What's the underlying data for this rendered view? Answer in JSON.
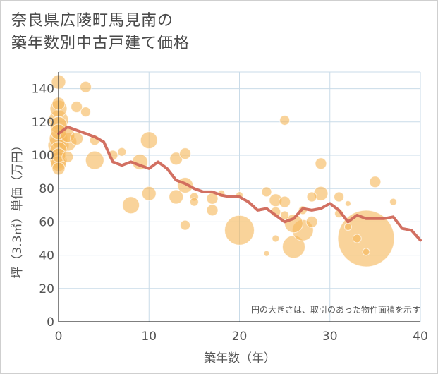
{
  "title_line1": "奈良県広陵町馬見南の",
  "title_line2": "築年数別中古戸建て価格",
  "note": "円の大きさは、取引のあった物件面積を示す",
  "chart_data": {
    "type": "scatter",
    "xlabel": "築年数（年）",
    "ylabel": "坪（3.3㎡）単価（万円）",
    "xlim": [
      0,
      40
    ],
    "ylim": [
      0,
      150
    ],
    "xticks": [
      0,
      10,
      20,
      30,
      40
    ],
    "yticks": [
      0,
      20,
      40,
      60,
      80,
      100,
      120,
      140
    ],
    "grid": true,
    "colors": {
      "bubble": "#f5b85c",
      "line": "#d0685a",
      "grid": "#c9dbe8"
    },
    "bubbles": [
      {
        "x": 0,
        "y": 144,
        "s": 10
      },
      {
        "x": 0,
        "y": 131,
        "s": 9
      },
      {
        "x": 0,
        "y": 128,
        "s": 12
      },
      {
        "x": 0,
        "y": 121,
        "s": 14
      },
      {
        "x": 0,
        "y": 118,
        "s": 12
      },
      {
        "x": 0,
        "y": 114,
        "s": 11
      },
      {
        "x": 0,
        "y": 110,
        "s": 13
      },
      {
        "x": 0,
        "y": 106,
        "s": 15
      },
      {
        "x": 0,
        "y": 103,
        "s": 12
      },
      {
        "x": 0,
        "y": 100,
        "s": 10
      },
      {
        "x": 0,
        "y": 97,
        "s": 12
      },
      {
        "x": 0,
        "y": 95,
        "s": 11
      },
      {
        "x": 0,
        "y": 92,
        "s": 9
      },
      {
        "x": 1,
        "y": 108,
        "s": 13
      },
      {
        "x": 1,
        "y": 112,
        "s": 10
      },
      {
        "x": 1,
        "y": 99,
        "s": 8
      },
      {
        "x": 2,
        "y": 129,
        "s": 8
      },
      {
        "x": 2,
        "y": 110,
        "s": 9
      },
      {
        "x": 3,
        "y": 141,
        "s": 8
      },
      {
        "x": 3,
        "y": 126,
        "s": 7
      },
      {
        "x": 4,
        "y": 97,
        "s": 13
      },
      {
        "x": 4,
        "y": 109,
        "s": 7
      },
      {
        "x": 6,
        "y": 100,
        "s": 7
      },
      {
        "x": 7,
        "y": 102,
        "s": 6
      },
      {
        "x": 8,
        "y": 70,
        "s": 12
      },
      {
        "x": 9,
        "y": 96,
        "s": 11
      },
      {
        "x": 10,
        "y": 109,
        "s": 12
      },
      {
        "x": 10,
        "y": 77,
        "s": 10
      },
      {
        "x": 13,
        "y": 98,
        "s": 9
      },
      {
        "x": 13,
        "y": 75,
        "s": 10
      },
      {
        "x": 14,
        "y": 101,
        "s": 8
      },
      {
        "x": 14,
        "y": 82,
        "s": 11
      },
      {
        "x": 14,
        "y": 58,
        "s": 7
      },
      {
        "x": 15,
        "y": 75,
        "s": 6
      },
      {
        "x": 15,
        "y": 72,
        "s": 6
      },
      {
        "x": 17,
        "y": 74,
        "s": 8
      },
      {
        "x": 17,
        "y": 67,
        "s": 8
      },
      {
        "x": 18,
        "y": 77,
        "s": 5
      },
      {
        "x": 20,
        "y": 55,
        "s": 21
      },
      {
        "x": 20,
        "y": 76,
        "s": 5
      },
      {
        "x": 23,
        "y": 78,
        "s": 7
      },
      {
        "x": 23,
        "y": 41,
        "s": 4
      },
      {
        "x": 24,
        "y": 73,
        "s": 9
      },
      {
        "x": 24,
        "y": 66,
        "s": 7
      },
      {
        "x": 24,
        "y": 50,
        "s": 5
      },
      {
        "x": 25,
        "y": 121,
        "s": 7
      },
      {
        "x": 25,
        "y": 72,
        "s": 8
      },
      {
        "x": 25,
        "y": 64,
        "s": 6
      },
      {
        "x": 26,
        "y": 45,
        "s": 16
      },
      {
        "x": 26,
        "y": 59,
        "s": 13
      },
      {
        "x": 27,
        "y": 55,
        "s": 15
      },
      {
        "x": 27,
        "y": 67,
        "s": 6
      },
      {
        "x": 28,
        "y": 75,
        "s": 7
      },
      {
        "x": 28,
        "y": 60,
        "s": 8
      },
      {
        "x": 29,
        "y": 95,
        "s": 8
      },
      {
        "x": 29,
        "y": 77,
        "s": 10
      },
      {
        "x": 31,
        "y": 75,
        "s": 7
      },
      {
        "x": 31,
        "y": 65,
        "s": 6
      },
      {
        "x": 32,
        "y": 71,
        "s": 4
      },
      {
        "x": 32,
        "y": 57,
        "s": 5
      },
      {
        "x": 33,
        "y": 50,
        "s": 6
      },
      {
        "x": 34,
        "y": 50,
        "s": 40
      },
      {
        "x": 34,
        "y": 42,
        "s": 5
      },
      {
        "x": 35,
        "y": 84,
        "s": 8
      },
      {
        "x": 37,
        "y": 72,
        "s": 5
      }
    ],
    "line": {
      "x": [
        0,
        1,
        2,
        3,
        4,
        5,
        6,
        7,
        8,
        9,
        10,
        11,
        12,
        13,
        14,
        15,
        16,
        17,
        18,
        19,
        20,
        21,
        22,
        23,
        24,
        25,
        26,
        27,
        28,
        29,
        30,
        31,
        32,
        33,
        34,
        35,
        36,
        37,
        38,
        39,
        40
      ],
      "y": [
        113,
        117,
        115,
        113,
        111,
        108,
        96,
        94,
        96,
        94,
        92,
        96,
        92,
        85,
        83,
        80,
        78,
        78,
        76,
        75,
        75,
        72,
        67,
        68,
        64,
        60,
        62,
        68,
        67,
        68,
        71,
        67,
        60,
        64,
        62,
        62,
        62,
        63,
        56,
        55,
        49
      ]
    }
  }
}
